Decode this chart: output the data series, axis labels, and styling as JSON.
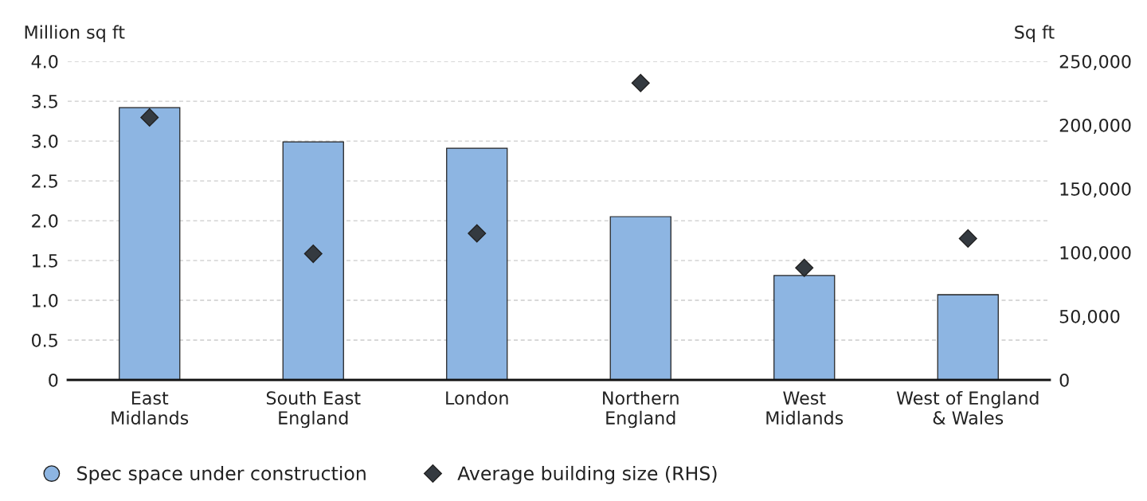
{
  "chart_data": {
    "type": "bar",
    "categories": [
      "East\nMidlands",
      "South East\nEngland",
      "London",
      "Northern\nEngland",
      "West\nMidlands",
      "West of England\n& Wales"
    ],
    "ylabel": "Million sq ft",
    "y2label": "Sq ft",
    "series": [
      {
        "name": "Spec space under construction",
        "color": "#8db5e2",
        "values": [
          3.42,
          2.99,
          2.91,
          2.05,
          1.31,
          1.07
        ]
      },
      {
        "name": "Average building size (RHS)",
        "type": "scatter",
        "axis": "y2",
        "color": "#343a40",
        "marker": "diamond",
        "values": [
          206000,
          99000,
          115000,
          233000,
          88000,
          111000
        ]
      }
    ],
    "ylim": [
      0,
      4.0
    ],
    "yticks": [
      {
        "value": 0,
        "label": "0"
      },
      {
        "value": 0.5,
        "label": "0.5"
      },
      {
        "value": 1.0,
        "label": "1.0"
      },
      {
        "value": 1.5,
        "label": "1.5"
      },
      {
        "value": 2.0,
        "label": "2.0"
      },
      {
        "value": 2.5,
        "label": "2.5"
      },
      {
        "value": 3.0,
        "label": "3.0"
      },
      {
        "value": 3.5,
        "label": "3.5"
      },
      {
        "value": 4.0,
        "label": "4.0"
      }
    ],
    "y2lim": [
      0,
      250000
    ],
    "y2ticks": [
      {
        "value": 0,
        "label": "0"
      },
      {
        "value": 50000,
        "label": "50,000"
      },
      {
        "value": 100000,
        "label": "100,000"
      },
      {
        "value": 150000,
        "label": "150,000"
      },
      {
        "value": 200000,
        "label": "200,000"
      },
      {
        "value": 250000,
        "label": "250,000"
      }
    ],
    "grid": "y",
    "legend": "bottom left"
  }
}
